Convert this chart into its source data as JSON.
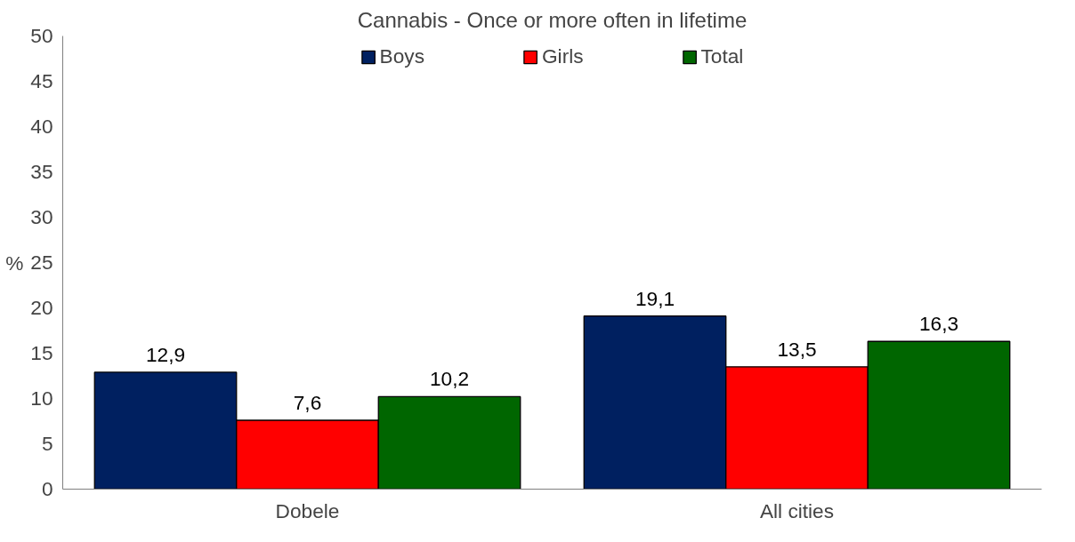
{
  "chart_data": {
    "type": "bar",
    "title": "Cannabis - Once or more often in lifetime",
    "ylabel": "%",
    "categories": [
      "Dobele",
      "All cities"
    ],
    "series": [
      {
        "name": "Boys",
        "color": "#002060",
        "values": [
          12.9,
          19.1
        ],
        "value_labels": [
          "12,9",
          "19,1"
        ]
      },
      {
        "name": "Girls",
        "color": "#ff0000",
        "values": [
          7.6,
          13.5
        ],
        "value_labels": [
          "7,6",
          "13,5"
        ]
      },
      {
        "name": "Total",
        "color": "#006600",
        "values": [
          10.2,
          16.3
        ],
        "value_labels": [
          "10,2",
          "16,3"
        ]
      }
    ],
    "ylim": [
      0,
      50
    ],
    "yticks": [
      0,
      5,
      10,
      15,
      20,
      25,
      30,
      35,
      40,
      45,
      50
    ],
    "grid": false,
    "legend": "top"
  }
}
